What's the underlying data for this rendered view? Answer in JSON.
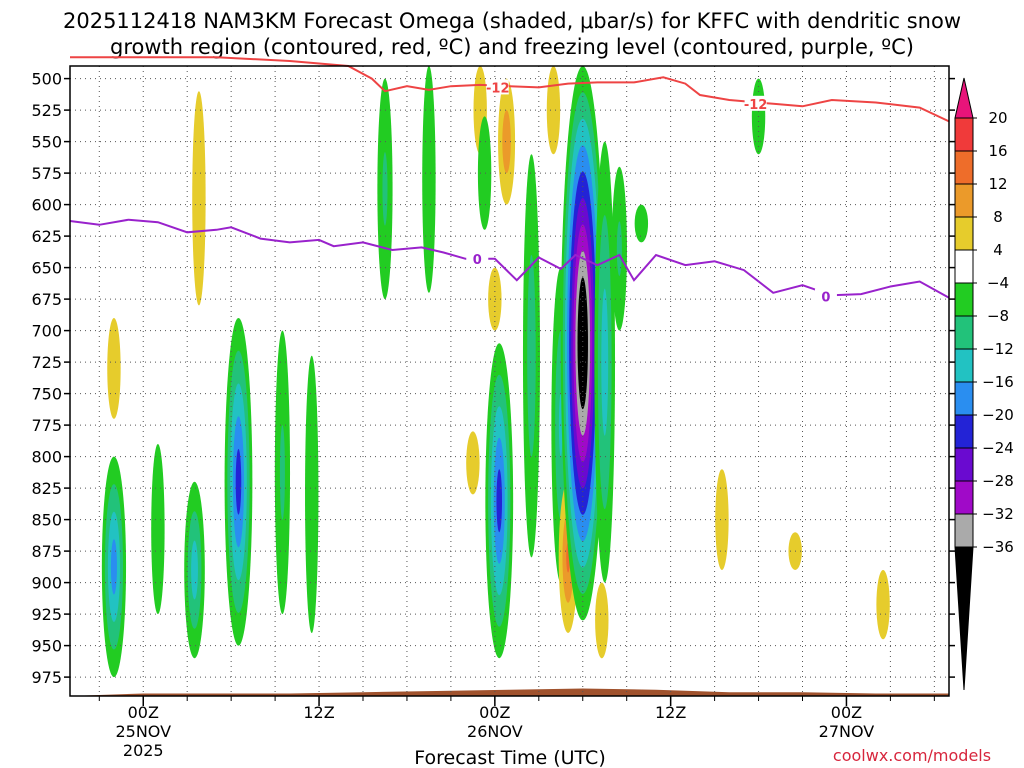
{
  "chart_data": {
    "type": "heatmap",
    "title_line1": "2025112418 NAM3KM Forecast Omega (shaded, μbar/s) for KFFC with dendritic snow",
    "title_line2": "growth region (contoured, red, ºC) and freezing level (contoured, purple, ºC)",
    "xlabel": "Forecast Time (UTC)",
    "credit": "coolwx.com/models",
    "x_range_hours": [
      -5,
      55
    ],
    "x_ticks": [
      {
        "hour": 0,
        "lines": [
          "00Z",
          "25NOV",
          "2025"
        ]
      },
      {
        "hour": 12,
        "lines": [
          "12Z"
        ]
      },
      {
        "hour": 24,
        "lines": [
          "00Z",
          "26NOV"
        ]
      },
      {
        "hour": 36,
        "lines": [
          "12Z"
        ]
      },
      {
        "hour": 48,
        "lines": [
          "00Z",
          "27NOV"
        ]
      }
    ],
    "y_range_hpa": [
      490,
      990
    ],
    "y_ticks": [
      500,
      525,
      550,
      575,
      600,
      625,
      650,
      675,
      700,
      725,
      750,
      775,
      800,
      825,
      850,
      875,
      900,
      925,
      950,
      975
    ],
    "grid": true,
    "colorbar": {
      "labels": [
        "20",
        "16",
        "12",
        "8",
        "4",
        "−4",
        "−8",
        "−12",
        "−16",
        "−20",
        "−24",
        "−28",
        "−32",
        "−36"
      ],
      "bins": [
        {
          "range": "> 20",
          "color": "#e8147a"
        },
        {
          "range": "16 to 20",
          "color": "#f03a3a"
        },
        {
          "range": "12 to 16",
          "color": "#ee6d2a"
        },
        {
          "range": "8 to 12",
          "color": "#eb9a2a"
        },
        {
          "range": "4 to 8",
          "color": "#e6cc2c"
        },
        {
          "range": "-4 to 4",
          "color": "#ffffff"
        },
        {
          "range": "-8 to -4",
          "color": "#22cc22"
        },
        {
          "range": "-12 to -8",
          "color": "#22c27a"
        },
        {
          "range": "-16 to -12",
          "color": "#22c2c2"
        },
        {
          "range": "-20 to -16",
          "color": "#2a8ef0"
        },
        {
          "range": "-24 to -20",
          "color": "#2323d6"
        },
        {
          "range": "-28 to -24",
          "color": "#6a0ad0"
        },
        {
          "range": "-32 to -28",
          "color": "#a00ac8"
        },
        {
          "range": "-36 to -32",
          "color": "#aaaaaa"
        },
        {
          "range": "< -36",
          "color": "#000000"
        }
      ]
    },
    "dgz_contour": {
      "name": "-12 ºC isotherm",
      "color": "#ee4444",
      "label": "-12",
      "points": [
        [
          -5,
          483
        ],
        [
          0,
          483
        ],
        [
          5,
          483
        ],
        [
          10,
          486
        ],
        [
          14,
          490
        ],
        [
          15.6,
          500
        ],
        [
          16.5,
          510
        ],
        [
          18,
          506
        ],
        [
          19.5,
          509
        ],
        [
          21,
          506
        ],
        [
          23,
          505
        ],
        [
          25,
          506
        ],
        [
          27,
          507
        ],
        [
          29,
          504
        ],
        [
          31,
          503
        ],
        [
          33.5,
          503
        ],
        [
          35.5,
          499
        ],
        [
          37,
          504
        ],
        [
          38,
          513
        ],
        [
          40,
          517
        ],
        [
          43,
          520
        ],
        [
          45,
          522
        ],
        [
          47,
          517
        ],
        [
          50,
          519
        ],
        [
          53,
          523
        ],
        [
          55,
          534
        ]
      ],
      "label_points": [
        [
          24.2,
          507
        ],
        [
          41.8,
          520
        ]
      ]
    },
    "freezing_level": {
      "name": "0 ºC isotherm",
      "color": "#9922cc",
      "label": "0",
      "points": [
        [
          -5,
          613
        ],
        [
          -3,
          616
        ],
        [
          -1,
          612
        ],
        [
          1,
          614
        ],
        [
          3,
          622
        ],
        [
          5,
          620
        ],
        [
          6,
          618
        ],
        [
          8,
          627
        ],
        [
          10,
          630
        ],
        [
          12,
          628
        ],
        [
          13,
          633
        ],
        [
          15,
          630
        ],
        [
          17,
          636
        ],
        [
          19,
          634
        ],
        [
          20.5,
          638
        ],
        [
          22,
          643
        ],
        [
          24,
          643
        ],
        [
          25.5,
          660
        ],
        [
          27,
          642
        ],
        [
          28.5,
          651
        ],
        [
          29.5,
          640
        ],
        [
          31,
          648
        ],
        [
          32.5,
          640
        ],
        [
          33.5,
          660
        ],
        [
          35,
          640
        ],
        [
          37,
          648
        ],
        [
          39,
          645
        ],
        [
          41,
          652
        ],
        [
          43,
          670
        ],
        [
          45,
          664
        ],
        [
          47,
          672
        ],
        [
          49,
          671
        ],
        [
          51,
          665
        ],
        [
          53,
          661
        ],
        [
          55,
          674
        ]
      ],
      "label_points": [
        [
          22.8,
          643
        ],
        [
          46.6,
          673
        ]
      ]
    },
    "omega_features": [
      {
        "hour": -2.0,
        "p_top": 800,
        "p_bot": 975,
        "min": -18
      },
      {
        "hour": -2.0,
        "p_top": 690,
        "p_bot": 770,
        "min": 6
      },
      {
        "hour": 1.0,
        "p_top": 790,
        "p_bot": 925,
        "min": -6
      },
      {
        "hour": 3.8,
        "p_top": 510,
        "p_bot": 680,
        "min": 6
      },
      {
        "hour": 3.5,
        "p_top": 820,
        "p_bot": 960,
        "min": -14
      },
      {
        "hour": 6.5,
        "p_top": 690,
        "p_bot": 950,
        "min": -22
      },
      {
        "hour": 9.5,
        "p_top": 700,
        "p_bot": 925,
        "min": -8
      },
      {
        "hour": 11.5,
        "p_top": 720,
        "p_bot": 940,
        "min": -6
      },
      {
        "hour": 16.5,
        "p_top": 500,
        "p_bot": 675,
        "min": -8
      },
      {
        "hour": 19.5,
        "p_top": 490,
        "p_bot": 670,
        "min": -6
      },
      {
        "hour": 23.0,
        "p_top": 490,
        "p_bot": 560,
        "min": 6
      },
      {
        "hour": 23.3,
        "p_top": 530,
        "p_bot": 620,
        "min": -6
      },
      {
        "hour": 22.5,
        "p_top": 780,
        "p_bot": 830,
        "min": 6
      },
      {
        "hour": 24.0,
        "p_top": 650,
        "p_bot": 700,
        "min": 6
      },
      {
        "hour": 24.8,
        "p_top": 500,
        "p_bot": 600,
        "min": 10
      },
      {
        "hour": 24.3,
        "p_top": 710,
        "p_bot": 960,
        "min": -22
      },
      {
        "hour": 26.5,
        "p_top": 560,
        "p_bot": 880,
        "min": -10
      },
      {
        "hour": 28.0,
        "p_top": 490,
        "p_bot": 560,
        "min": 6
      },
      {
        "hour": 28.5,
        "p_top": 650,
        "p_bot": 900,
        "min": -12
      },
      {
        "hour": 29.0,
        "p_top": 820,
        "p_bot": 940,
        "min": 12
      },
      {
        "hour": 30.0,
        "p_top": 490,
        "p_bot": 930,
        "min": -44
      },
      {
        "hour": 31.5,
        "p_top": 550,
        "p_bot": 900,
        "min": -14
      },
      {
        "hour": 32.5,
        "p_top": 570,
        "p_bot": 700,
        "min": -8
      },
      {
        "hour": 31.3,
        "p_top": 900,
        "p_bot": 960,
        "min": 6
      },
      {
        "hour": 34.0,
        "p_top": 600,
        "p_bot": 630,
        "min": -6
      },
      {
        "hour": 42.0,
        "p_top": 500,
        "p_bot": 560,
        "min": -6
      },
      {
        "hour": 39.5,
        "p_top": 810,
        "p_bot": 890,
        "min": 6
      },
      {
        "hour": 44.5,
        "p_top": 860,
        "p_bot": 890,
        "min": 6
      },
      {
        "hour": 50.5,
        "p_top": 890,
        "p_bot": 945,
        "min": 6
      }
    ],
    "terrain": {
      "color": "#a0522d",
      "points": [
        [
          -5,
          990
        ],
        [
          0,
          988
        ],
        [
          5,
          988
        ],
        [
          10,
          988
        ],
        [
          15,
          987
        ],
        [
          20,
          986
        ],
        [
          25,
          985
        ],
        [
          30,
          984
        ],
        [
          35,
          985
        ],
        [
          40,
          987
        ],
        [
          45,
          987
        ],
        [
          50,
          988
        ],
        [
          55,
          988
        ]
      ]
    }
  }
}
